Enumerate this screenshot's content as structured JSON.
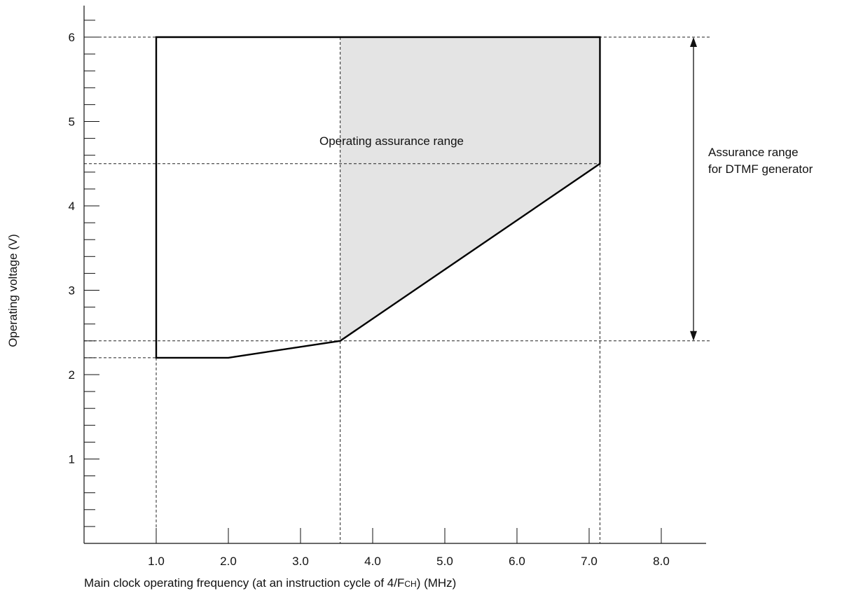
{
  "chart_data": {
    "type": "area",
    "xlabel_parts": [
      "Main clock operating frequency (at an instruction cycle of 4/F",
      "CH",
      ") (MHz)"
    ],
    "ylabel": "Operating voltage (V)",
    "x_ticks": [
      {
        "value": 1.0,
        "label": "1.0"
      },
      {
        "value": 2.0,
        "label": "2.0"
      },
      {
        "value": 3.0,
        "label": "3.0"
      },
      {
        "value": 4.0,
        "label": "4.0"
      },
      {
        "value": 5.0,
        "label": "5.0"
      },
      {
        "value": 6.0,
        "label": "6.0"
      },
      {
        "value": 7.0,
        "label": "7.0"
      },
      {
        "value": 8.0,
        "label": "8.0"
      }
    ],
    "y_ticks": [
      {
        "value": 1,
        "label": "1"
      },
      {
        "value": 2,
        "label": "2"
      },
      {
        "value": 3,
        "label": "3"
      },
      {
        "value": 4,
        "label": "4"
      },
      {
        "value": 5,
        "label": "5"
      },
      {
        "value": 6,
        "label": "6"
      }
    ],
    "xlim": [
      0,
      8.6
    ],
    "ylim": [
      0,
      6.4
    ],
    "y_minor_step": 0.2,
    "x_minor_step": 0.5,
    "operating_range": {
      "label": "Operating assurance range",
      "boundary": [
        {
          "x": 1.0,
          "y": 6.0
        },
        {
          "x": 7.15,
          "y": 6.0
        },
        {
          "x": 7.15,
          "y": 4.5
        },
        {
          "x": 3.55,
          "y": 2.4
        },
        {
          "x": 2.0,
          "y": 2.2
        },
        {
          "x": 1.0,
          "y": 2.2
        }
      ]
    },
    "dtmf_range": {
      "label_lines": [
        "Assurance range",
        "for DTMF generator"
      ],
      "polygon": [
        {
          "x": 3.55,
          "y": 6.0
        },
        {
          "x": 7.15,
          "y": 6.0
        },
        {
          "x": 7.15,
          "y": 4.5
        },
        {
          "x": 3.55,
          "y": 2.4
        }
      ],
      "v_min": 2.4,
      "v_max": 6.0,
      "fill_color": "#e4e4e4"
    },
    "reference_lines": {
      "horizontal": [
        6.0,
        4.5,
        2.4,
        2.2
      ],
      "vertical": [
        1.0,
        3.55,
        7.15
      ]
    }
  }
}
